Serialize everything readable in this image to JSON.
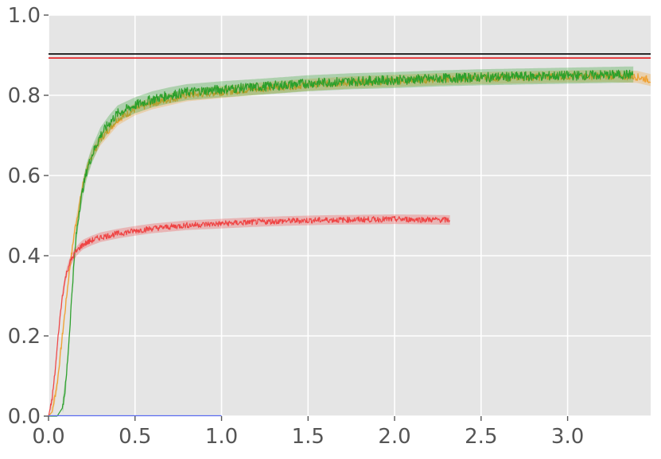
{
  "chart_data": {
    "type": "line",
    "title": "",
    "xlabel": "",
    "ylabel": "",
    "xlim": [
      0,
      3.48
    ],
    "ylim": [
      0,
      1.0
    ],
    "grid": true,
    "legend": "none",
    "x_ticks": [
      "0.0",
      "0.5",
      "1.0",
      "1.5",
      "2.0",
      "2.5",
      "3.0"
    ],
    "x_tick_values": [
      0,
      0.5,
      1.0,
      1.5,
      2.0,
      2.5,
      3.0
    ],
    "y_ticks": [
      "0.0",
      "0.2",
      "0.4",
      "0.6",
      "0.8",
      "1.0"
    ],
    "y_tick_values": [
      0,
      0.2,
      0.4,
      0.6,
      0.8,
      1.0
    ],
    "reference_lines": [
      {
        "y": 0.903,
        "color": "#000000"
      },
      {
        "y": 0.893,
        "color": "#e41a1c"
      }
    ],
    "series": [
      {
        "color": "#f0a030",
        "band": 0.015,
        "x": [
          0,
          0.02,
          0.05,
          0.08,
          0.1,
          0.12,
          0.15,
          0.18,
          0.2,
          0.22,
          0.25,
          0.3,
          0.35,
          0.4,
          0.5,
          0.6,
          0.7,
          0.8,
          1.0,
          1.25,
          1.5,
          1.75,
          2.0,
          2.25,
          2.5,
          2.75,
          3.0,
          3.25,
          3.4,
          3.48
        ],
        "y": [
          0.0,
          0.01,
          0.08,
          0.2,
          0.28,
          0.36,
          0.46,
          0.53,
          0.58,
          0.61,
          0.65,
          0.69,
          0.715,
          0.74,
          0.765,
          0.78,
          0.79,
          0.8,
          0.808,
          0.818,
          0.826,
          0.832,
          0.836,
          0.84,
          0.843,
          0.845,
          0.847,
          0.848,
          0.846,
          0.838
        ]
      },
      {
        "color": "#2ca02c",
        "band": 0.02,
        "x": [
          0,
          0.05,
          0.08,
          0.1,
          0.12,
          0.14,
          0.16,
          0.18,
          0.2,
          0.22,
          0.25,
          0.3,
          0.35,
          0.4,
          0.5,
          0.6,
          0.7,
          0.8,
          1.0,
          1.25,
          1.5,
          1.75,
          2.0,
          2.25,
          2.5,
          2.75,
          3.0,
          3.25,
          3.38
        ],
        "y": [
          0.0,
          0.0,
          0.02,
          0.08,
          0.2,
          0.34,
          0.45,
          0.52,
          0.57,
          0.61,
          0.65,
          0.7,
          0.73,
          0.755,
          0.775,
          0.79,
          0.8,
          0.808,
          0.815,
          0.822,
          0.83,
          0.835,
          0.838,
          0.842,
          0.845,
          0.847,
          0.849,
          0.851,
          0.852
        ]
      },
      {
        "color": "#ef4444",
        "band": 0.012,
        "x": [
          0,
          0.02,
          0.04,
          0.06,
          0.08,
          0.1,
          0.12,
          0.15,
          0.18,
          0.2,
          0.25,
          0.3,
          0.4,
          0.5,
          0.6,
          0.7,
          0.8,
          1.0,
          1.2,
          1.4,
          1.6,
          1.8,
          2.0,
          2.2,
          2.32
        ],
        "y": [
          0.0,
          0.04,
          0.12,
          0.22,
          0.3,
          0.35,
          0.38,
          0.405,
          0.42,
          0.428,
          0.438,
          0.446,
          0.455,
          0.462,
          0.468,
          0.472,
          0.476,
          0.48,
          0.484,
          0.487,
          0.489,
          0.49,
          0.491,
          0.49,
          0.489
        ]
      },
      {
        "color": "#5b6cf0",
        "band": 0,
        "x": [
          0,
          1.0
        ],
        "y": [
          0.001,
          0.001
        ]
      }
    ]
  }
}
